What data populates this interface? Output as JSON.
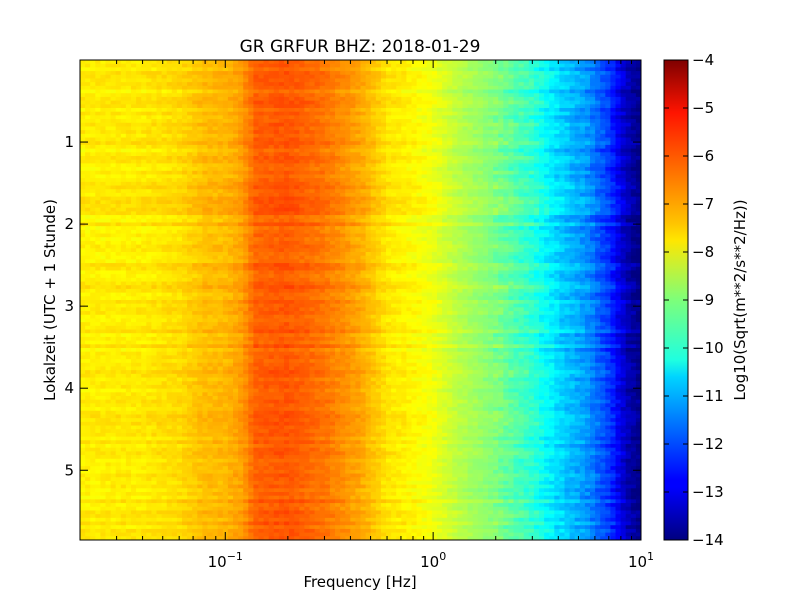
{
  "chart_data": {
    "type": "heatmap",
    "title": "GR GRFUR BHZ: 2018-01-29",
    "xlabel": "Frequency [Hz]",
    "ylabel": "Lokalzeit (UTC + 1 Stunde)",
    "x_scale": "log",
    "xlim": [
      0.02,
      10
    ],
    "ylim": [
      0,
      5.85
    ],
    "y_inverted": true,
    "x_ticks": [
      {
        "base": "10",
        "exp": "−1",
        "value": 0.1
      },
      {
        "base": "10",
        "exp": "0",
        "value": 1
      },
      {
        "base": "10",
        "exp": "1",
        "value": 10
      }
    ],
    "y_ticks": [
      "1",
      "2",
      "3",
      "4",
      "5"
    ],
    "colormap": "jet",
    "colorbar": {
      "label": "Log10(Sqrt(m**2/s**2/Hz))",
      "min": -14,
      "max": -4,
      "ticks": [
        "−4",
        "−5",
        "−6",
        "−7",
        "−8",
        "−9",
        "−10",
        "−11",
        "−12",
        "−13",
        "−14"
      ]
    },
    "profile": {
      "frequency_hz": [
        0.02,
        0.04,
        0.06,
        0.08,
        0.1,
        0.12,
        0.14,
        0.2,
        0.3,
        0.45,
        0.6,
        0.8,
        1.0,
        1.3,
        2.0,
        3.0,
        4.0,
        5.5,
        7.0,
        8.5,
        10.0
      ],
      "log10_amplitude": [
        -7.6,
        -7.55,
        -7.4,
        -7.1,
        -7.05,
        -6.8,
        -6.2,
        -6.1,
        -6.4,
        -6.9,
        -7.5,
        -7.7,
        -7.9,
        -8.4,
        -9.0,
        -9.8,
        -10.6,
        -11.3,
        -12.2,
        -13.4,
        -14.0
      ]
    },
    "time_rows": 130
  }
}
